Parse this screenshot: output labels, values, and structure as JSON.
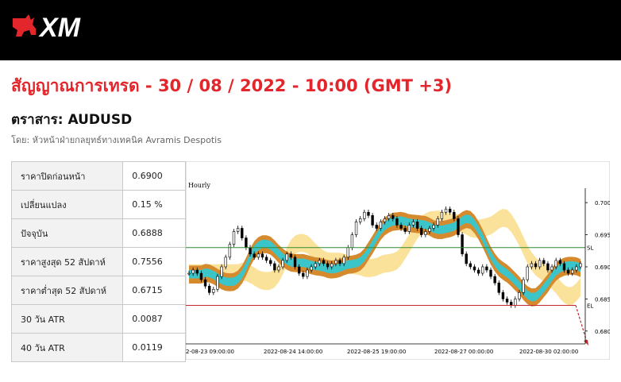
{
  "brand": {
    "logo_text": "XM"
  },
  "page": {
    "title": "สัญญาณการเทรด - 30 / 08 / 2022 - 10:00 (GMT +3)",
    "symbol_label": "ตราสาร: AUDUSD",
    "author": "โดย: หัวหน้าฝ่ายกลยุทธ์ทางเทคนิค Avramis Despotis"
  },
  "stats": [
    {
      "label": "ราคาปิดก่อนหน้า",
      "value": "0.6900"
    },
    {
      "label": "เปลี่ยนแปลง",
      "value": "0.15 %"
    },
    {
      "label": "ปัจจุบัน",
      "value": "0.6888"
    },
    {
      "label": "ราคาสูงสุด 52 สัปดาห์",
      "value": "0.7556"
    },
    {
      "label": "ราคาต่ำสุด 52 สัปดาห์",
      "value": "0.6715"
    },
    {
      "label": "30 วัน ATR",
      "value": "0.0087"
    },
    {
      "label": "40 วัน ATR",
      "value": "0.0119"
    }
  ],
  "chart_data": {
    "type": "line",
    "title": "Hourly",
    "x_tick_labels": [
      "2-08-23 09:00:00",
      "2022-08-24 14:00:00",
      "2022-08-25 19:00:00",
      "2022-08-27 00:00:00",
      "2022-08-30 02:00:00"
    ],
    "y_tick_labels": [
      "0.7000",
      "0.6950",
      "0.6900",
      "0.6850",
      "0.6800"
    ],
    "ylim": [
      0.678,
      0.7015
    ],
    "sl_label": "SL",
    "sl_level": 0.693,
    "el_label": "EL",
    "el_level": 0.684,
    "series": [
      {
        "values": [
          0.689,
          0.6895,
          0.689,
          0.688,
          0.687,
          0.686,
          0.6865,
          0.6885,
          0.69,
          0.6915,
          0.6935,
          0.6955,
          0.696,
          0.6945,
          0.693,
          0.692,
          0.6915,
          0.692,
          0.6915,
          0.691,
          0.6905,
          0.6895,
          0.69,
          0.691,
          0.692,
          0.6915,
          0.69,
          0.689,
          0.6885,
          0.6895,
          0.69,
          0.6905,
          0.691,
          0.6905,
          0.69,
          0.6905,
          0.691,
          0.6905,
          0.6915,
          0.693,
          0.695,
          0.697,
          0.6975,
          0.6985,
          0.698,
          0.6965,
          0.696,
          0.697,
          0.6975,
          0.698,
          0.6975,
          0.6965,
          0.696,
          0.6955,
          0.6965,
          0.697,
          0.696,
          0.695,
          0.6955,
          0.696,
          0.6965,
          0.6975,
          0.6985,
          0.699,
          0.6985,
          0.6975,
          0.695,
          0.692,
          0.6905,
          0.69,
          0.6895,
          0.689,
          0.69,
          0.6895,
          0.6885,
          0.6875,
          0.686,
          0.685,
          0.6845,
          0.684,
          0.685,
          0.686,
          0.688,
          0.69,
          0.6905,
          0.69,
          0.691,
          0.6905,
          0.6895,
          0.69,
          0.691,
          0.6905,
          0.6895,
          0.689,
          0.6895,
          0.69,
          0.6905
        ]
      }
    ]
  }
}
